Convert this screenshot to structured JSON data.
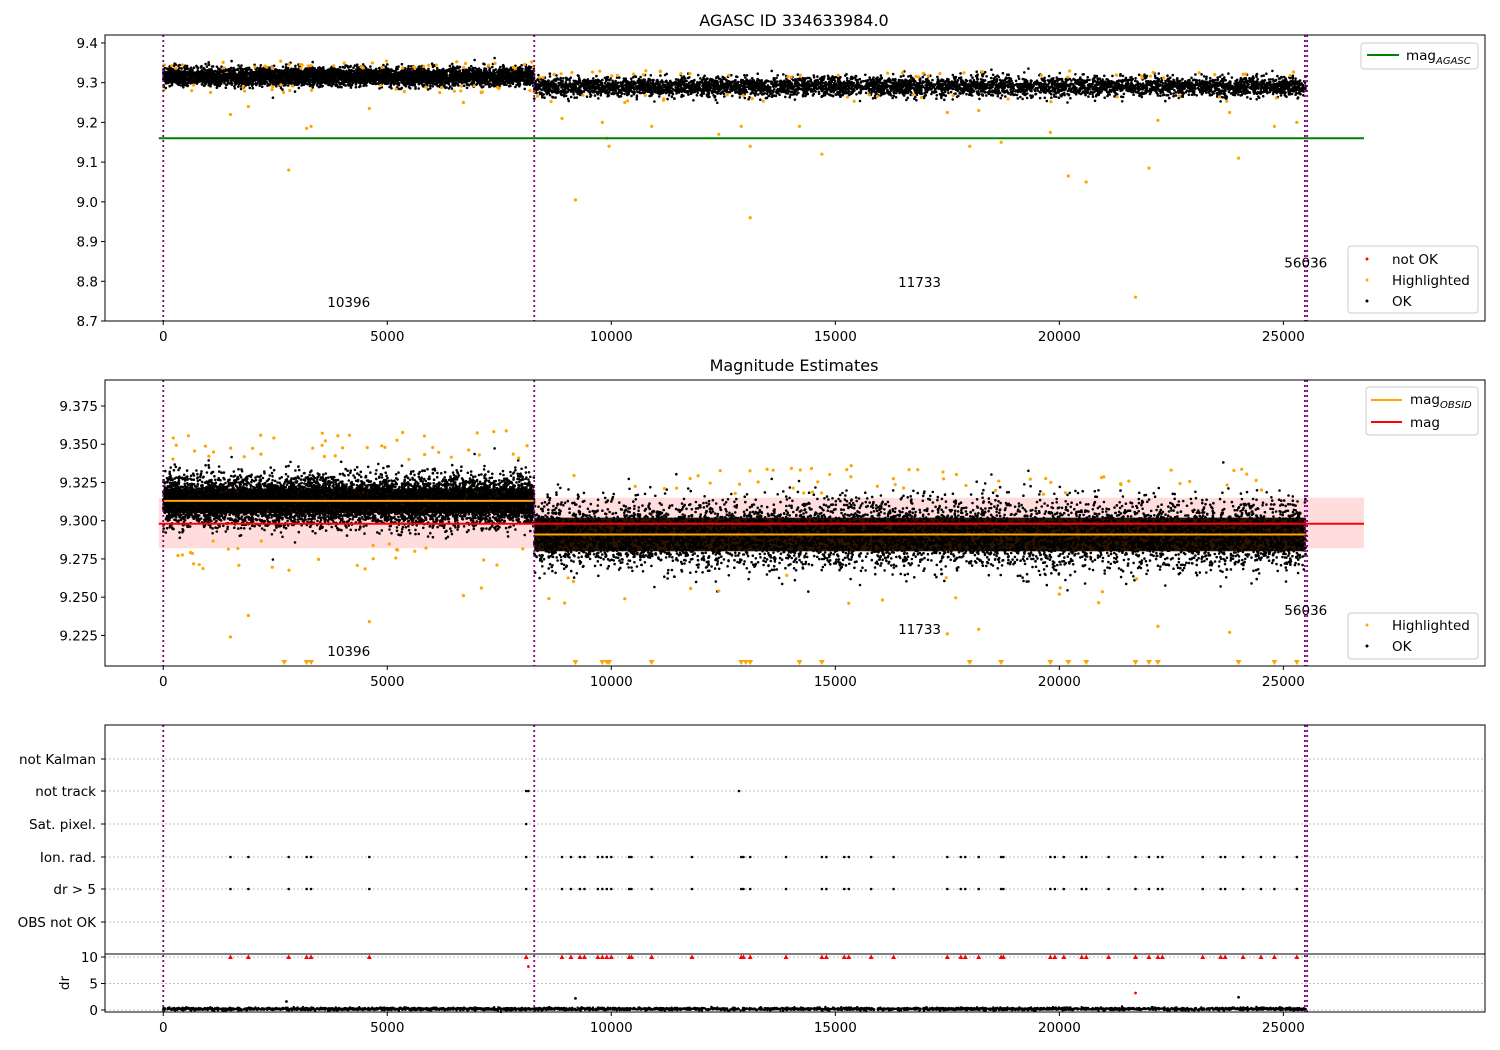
{
  "chart_data": [
    {
      "type": "scatter",
      "title": "AGASC ID 334633984.0",
      "xlim": [
        -1300,
        29500
      ],
      "ylim": [
        8.7,
        9.42
      ],
      "x_ticks": [
        0,
        5000,
        10000,
        15000,
        20000,
        25000
      ],
      "y_ticks": [
        8.7,
        8.8,
        8.9,
        9.0,
        9.1,
        9.2,
        9.3,
        9.4
      ],
      "y_tick_labels": [
        "8.7",
        "8.8",
        "8.9",
        "9.0",
        "9.1",
        "9.2",
        "9.3",
        "9.4"
      ],
      "obs_boundaries": [
        0,
        8280,
        25480,
        25530
      ],
      "obs_labels": [
        {
          "x": 4140,
          "y": 8.735,
          "text": "10396"
        },
        {
          "x": 16880,
          "y": 8.785,
          "text": "11733"
        },
        {
          "x": 25500,
          "y": 8.835,
          "text": "56036"
        }
      ],
      "reference_lines": [
        {
          "name": "mag_AGASC",
          "y": 9.16,
          "x_range": [
            -100,
            26800
          ],
          "color": "#008000"
        }
      ],
      "bands": [
        {
          "x_range": [
            0,
            8280
          ],
          "center": 9.315,
          "spread": 0.011
        },
        {
          "x_range": [
            8280,
            25500
          ],
          "center": 9.29,
          "spread": 0.012
        }
      ],
      "series": [
        {
          "name": "not OK",
          "color": "#ff0000",
          "points": []
        },
        {
          "name": "Highlighted",
          "color": "#ffa500",
          "points": [
            [
              1500,
              9.22
            ],
            [
              1900,
              9.24
            ],
            [
              2800,
              9.08
            ],
            [
              3200,
              9.185
            ],
            [
              3300,
              9.19
            ],
            [
              4600,
              9.235
            ],
            [
              6700,
              9.25
            ],
            [
              8900,
              9.21
            ],
            [
              9200,
              9.005
            ],
            [
              9800,
              9.2
            ],
            [
              9900,
              9.16
            ],
            [
              9950,
              9.14
            ],
            [
              10300,
              9.25
            ],
            [
              10900,
              9.19
            ],
            [
              12400,
              9.17
            ],
            [
              12900,
              9.19
            ],
            [
              13100,
              8.96
            ],
            [
              13100,
              9.14
            ],
            [
              14200,
              9.19
            ],
            [
              14700,
              9.12
            ],
            [
              17500,
              9.225
            ],
            [
              18000,
              9.14
            ],
            [
              18200,
              9.23
            ],
            [
              18700,
              9.15
            ],
            [
              19800,
              9.175
            ],
            [
              20200,
              9.065
            ],
            [
              20600,
              9.05
            ],
            [
              21700,
              8.76
            ],
            [
              22000,
              9.085
            ],
            [
              22200,
              9.205
            ],
            [
              23800,
              9.225
            ],
            [
              24000,
              9.11
            ],
            [
              24800,
              9.19
            ],
            [
              25300,
              9.2
            ]
          ]
        },
        {
          "name": "OK",
          "color": "#000000",
          "points": []
        }
      ],
      "legend": {
        "placement": "top-right / lower-right",
        "entries": [
          "mag_AGASC",
          "not OK",
          "Highlighted",
          "OK"
        ]
      }
    },
    {
      "type": "scatter",
      "title": "Magnitude Estimates",
      "xlim": [
        -1300,
        29500
      ],
      "ylim": [
        9.205,
        9.392
      ],
      "x_ticks": [
        0,
        5000,
        10000,
        15000,
        20000,
        25000
      ],
      "y_ticks": [
        9.225,
        9.25,
        9.275,
        9.3,
        9.325,
        9.35,
        9.375
      ],
      "y_tick_labels": [
        "9.225",
        "9.250",
        "9.275",
        "9.300",
        "9.325",
        "9.350",
        "9.375"
      ],
      "obs_boundaries": [
        0,
        8280,
        25480,
        25530
      ],
      "obs_labels": [
        {
          "x": 4140,
          "y": 9.2115,
          "text": "10396"
        },
        {
          "x": 16880,
          "y": 9.226,
          "text": "11733"
        },
        {
          "x": 25500,
          "y": 9.2385,
          "text": "56036"
        }
      ],
      "reference_lines": [
        {
          "name": "mag",
          "y": 9.298,
          "x_range": [
            -100,
            26800
          ],
          "color": "#ff0000"
        },
        {
          "name": "mag_OBSID",
          "y": 9.313,
          "x_range": [
            0,
            8280
          ],
          "color": "#ffa500"
        },
        {
          "name": "mag_OBSID",
          "y": 9.291,
          "x_range": [
            8280,
            25500
          ],
          "color": "#ffa500"
        }
      ],
      "shaded_band": {
        "y_range": [
          9.282,
          9.315
        ],
        "x_range": [
          -100,
          26800
        ],
        "color": "#ffdddd"
      },
      "bands": [
        {
          "x_range": [
            0,
            8280
          ],
          "center": 9.313,
          "spread": 0.008
        },
        {
          "x_range": [
            8280,
            25500
          ],
          "center": 9.291,
          "spread": 0.011
        }
      ],
      "series": [
        {
          "name": "Highlighted",
          "color": "#ffa500",
          "points": [
            [
              1500,
              9.224
            ],
            [
              1900,
              9.238
            ],
            [
              4600,
              9.234
            ],
            [
              6700,
              9.251
            ],
            [
              7100,
              9.256
            ],
            [
              10300,
              9.249
            ],
            [
              12400,
              9.254
            ],
            [
              15300,
              9.246
            ],
            [
              17500,
              9.226
            ],
            [
              18200,
              9.229
            ],
            [
              20000,
              9.252
            ],
            [
              22200,
              9.231
            ],
            [
              23800,
              9.227
            ]
          ]
        },
        {
          "name": "OK",
          "color": "#000000",
          "points": []
        }
      ],
      "clipped_markers_x": [
        2700,
        3200,
        3300,
        9200,
        9800,
        9900,
        9950,
        10900,
        12900,
        13000,
        13100,
        14200,
        14700,
        18000,
        18700,
        19800,
        20200,
        20600,
        21700,
        22000,
        22200,
        24000,
        24800,
        25300
      ],
      "legend": {
        "placement": "top-right / lower-right",
        "entries": [
          "mag_OBSID",
          "mag",
          "Highlighted",
          "OK"
        ]
      }
    },
    {
      "type": "scatter",
      "title": "",
      "xlim": [
        -1300,
        29500
      ],
      "x_ticks": [
        0,
        5000,
        10000,
        15000,
        20000,
        25000
      ],
      "obs_boundaries": [
        0,
        8280,
        25480,
        25530
      ],
      "flag_rows": [
        "not Kalman",
        "not track",
        "Sat. pixel.",
        "Ion. rad.",
        "dr > 5",
        "OBS not OK"
      ],
      "flag_points": {
        "not Kalman": [],
        "not track": [
          8100,
          8150,
          12850
        ],
        "Sat. pixel.": [
          8100
        ],
        "Ion. rad.": [
          1500,
          1900,
          2800,
          3200,
          3300,
          4600,
          8100,
          8900,
          9100,
          9300,
          9400,
          9700,
          9800,
          9900,
          10000,
          10400,
          10450,
          10900,
          11800,
          12900,
          12950,
          13100,
          13900,
          14700,
          14800,
          15200,
          15300,
          15800,
          16300,
          17500,
          17800,
          17900,
          18200,
          18700,
          18750,
          19800,
          19900,
          20100,
          20500,
          20600,
          21100,
          21700,
          22000,
          22200,
          22300,
          23200,
          23600,
          23700,
          24100,
          24500,
          24800,
          25300
        ],
        "dr > 5": [
          1500,
          1900,
          2800,
          3200,
          3300,
          4600,
          8100,
          8900,
          9100,
          9300,
          9400,
          9700,
          9800,
          9900,
          10000,
          10400,
          10450,
          10900,
          11800,
          12900,
          12950,
          13100,
          13900,
          14700,
          14800,
          15200,
          15300,
          15800,
          16300,
          17500,
          17800,
          17900,
          18200,
          18700,
          18750,
          19800,
          19900,
          20100,
          20500,
          20600,
          21100,
          21700,
          22000,
          22200,
          22300,
          23200,
          23600,
          23700,
          24100,
          24500,
          24800,
          25300
        ],
        "OBS not OK": []
      },
      "dr_panel": {
        "ylabel": "dr",
        "ylim": [
          -0.5,
          10.5
        ],
        "y_ticks": [
          0,
          5,
          10
        ],
        "clipped_red_markers_x": [
          1500,
          1900,
          2800,
          3200,
          3300,
          4600,
          8100,
          8900,
          9100,
          9300,
          9400,
          9700,
          9800,
          9900,
          10000,
          10400,
          10450,
          10900,
          11800,
          12900,
          12950,
          13100,
          13900,
          14700,
          14800,
          15200,
          15300,
          15800,
          16300,
          17500,
          17800,
          17900,
          18200,
          18700,
          18750,
          19800,
          19900,
          20100,
          20500,
          20600,
          21100,
          21700,
          22000,
          22200,
          22300,
          23200,
          23600,
          23700,
          24100,
          24500,
          24800,
          25300
        ],
        "red_points": [
          [
            8150,
            8.2
          ],
          [
            21700,
            3.2
          ]
        ],
        "black_points": [
          [
            2750,
            1.6
          ],
          [
            9200,
            2.2
          ],
          [
            24000,
            2.4
          ]
        ],
        "baseline": {
          "center": 0.2,
          "spread": 0.12
        }
      }
    }
  ]
}
